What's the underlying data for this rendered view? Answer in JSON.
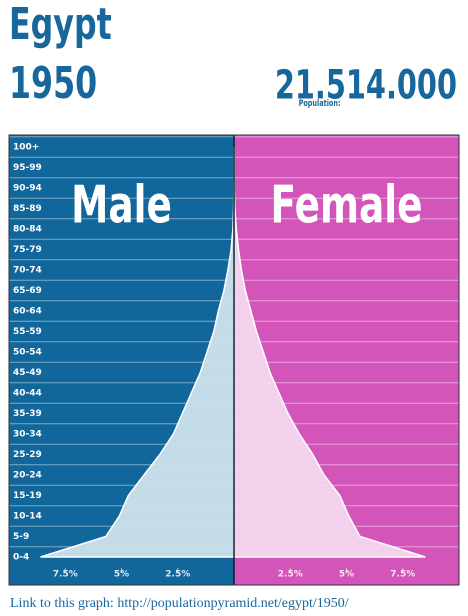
{
  "chart_data": {
    "type": "pyramid",
    "title": "Egypt",
    "subtitle": "1950",
    "population_label": "Population:",
    "population": "21.514.000",
    "categories": [
      "0-4",
      "5-9",
      "10-14",
      "15-19",
      "20-24",
      "25-29",
      "30-34",
      "35-39",
      "40-44",
      "45-49",
      "50-54",
      "55-59",
      "60-64",
      "65-69",
      "70-74",
      "75-79",
      "80-84",
      "85-89",
      "90-94",
      "95-99",
      "100+"
    ],
    "series": [
      {
        "name": "Male",
        "color": "#11679b",
        "fill": "#cfe1ec",
        "side": "left",
        "values": [
          8.6,
          5.7,
          5.1,
          4.7,
          4.0,
          3.3,
          2.7,
          2.3,
          1.9,
          1.5,
          1.2,
          0.9,
          0.7,
          0.45,
          0.27,
          0.13,
          0.05,
          0.02,
          0.01,
          0,
          0
        ]
      },
      {
        "name": "Female",
        "color": "#d455b9",
        "fill": "#f4d8ef",
        "side": "right",
        "values": [
          8.5,
          5.6,
          5.1,
          4.7,
          4.0,
          3.5,
          2.9,
          2.4,
          2.0,
          1.6,
          1.3,
          1.0,
          0.75,
          0.5,
          0.33,
          0.2,
          0.1,
          0.04,
          0.01,
          0,
          0
        ]
      }
    ],
    "xlim": [
      0,
      10
    ],
    "xticks": [
      {
        "value": 2.5,
        "label": "2.5%"
      },
      {
        "value": 5,
        "label": "5%"
      },
      {
        "value": 7.5,
        "label": "7.5%"
      }
    ],
    "grid": true,
    "footer": "Link to this graph: http://populationpyramid.net/egypt/1950/"
  }
}
